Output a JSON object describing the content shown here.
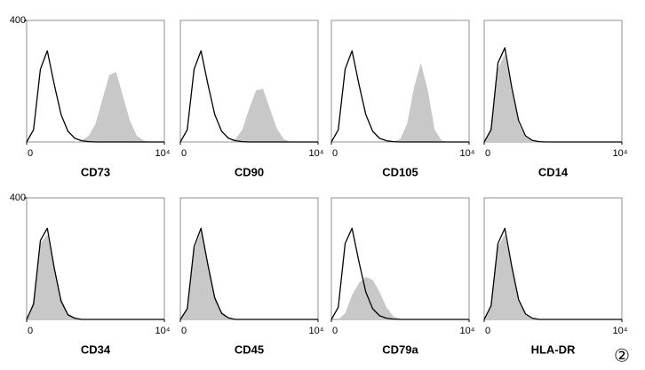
{
  "chart_data": [
    {
      "type": "area",
      "title": "CD73",
      "x": [
        0,
        0.2,
        0.4,
        0.6,
        0.8,
        1,
        1.2,
        1.4,
        1.6,
        1.8,
        2,
        2.2,
        2.4,
        2.6,
        2.8,
        3,
        3.2,
        3.4,
        3.6,
        3.8,
        4
      ],
      "xlim": [
        0,
        4
      ],
      "xticks": [
        0,
        {
          "value": 4,
          "label": "10⁴"
        }
      ],
      "ylim": [
        0,
        400
      ],
      "yticks": [
        400
      ],
      "series": [
        {
          "color": "#c8c8c8",
          "fill": true,
          "values": [
            0,
            0,
            0,
            0,
            0,
            0,
            0,
            0,
            5,
            20,
            60,
            140,
            220,
            230,
            150,
            70,
            20,
            5,
            0,
            0,
            0
          ]
        },
        {
          "color": "#000000",
          "fill": false,
          "values": [
            0,
            40,
            240,
            300,
            190,
            90,
            35,
            12,
            4,
            1,
            0,
            0,
            0,
            0,
            0,
            0,
            0,
            0,
            0,
            0,
            0
          ]
        }
      ]
    },
    {
      "type": "area",
      "title": "CD90",
      "x": [
        0,
        0.2,
        0.4,
        0.6,
        0.8,
        1,
        1.2,
        1.4,
        1.6,
        1.8,
        2,
        2.2,
        2.4,
        2.6,
        2.8,
        3,
        3.2,
        3.4,
        3.6,
        3.8,
        4
      ],
      "xlim": [
        0,
        4
      ],
      "xticks": [
        0,
        {
          "value": 4,
          "label": "10⁴"
        }
      ],
      "ylim": [
        0,
        400
      ],
      "yticks": [],
      "series": [
        {
          "color": "#c8c8c8",
          "fill": true,
          "values": [
            0,
            0,
            0,
            0,
            0,
            0,
            0,
            0,
            10,
            40,
            110,
            170,
            175,
            110,
            45,
            10,
            0,
            0,
            0,
            0,
            0
          ]
        },
        {
          "color": "#000000",
          "fill": false,
          "values": [
            0,
            40,
            240,
            300,
            190,
            90,
            35,
            12,
            4,
            1,
            0,
            0,
            0,
            0,
            0,
            0,
            0,
            0,
            0,
            0,
            0
          ]
        }
      ]
    },
    {
      "type": "area",
      "title": "CD105",
      "x": [
        0,
        0.2,
        0.4,
        0.6,
        0.8,
        1,
        1.2,
        1.4,
        1.6,
        1.8,
        2,
        2.2,
        2.4,
        2.6,
        2.8,
        3,
        3.2,
        3.4,
        3.6,
        3.8,
        4
      ],
      "xlim": [
        0,
        4
      ],
      "xticks": [
        0,
        {
          "value": 4,
          "label": "10⁴"
        }
      ],
      "ylim": [
        0,
        400
      ],
      "yticks": [],
      "series": [
        {
          "color": "#c8c8c8",
          "fill": true,
          "values": [
            0,
            0,
            0,
            0,
            0,
            0,
            0,
            0,
            0,
            0,
            10,
            60,
            180,
            260,
            170,
            40,
            5,
            0,
            0,
            0,
            0
          ]
        },
        {
          "color": "#000000",
          "fill": false,
          "values": [
            0,
            40,
            240,
            300,
            190,
            90,
            35,
            12,
            4,
            1,
            0,
            0,
            0,
            0,
            0,
            0,
            0,
            0,
            0,
            0,
            0
          ]
        }
      ]
    },
    {
      "type": "area",
      "title": "CD14",
      "x": [
        0,
        0.2,
        0.4,
        0.6,
        0.8,
        1,
        1.2,
        1.4,
        1.6,
        1.8,
        2,
        2.2,
        2.4,
        2.6,
        2.8,
        3,
        3.2,
        3.4,
        3.6,
        3.8,
        4
      ],
      "xlim": [
        0,
        4
      ],
      "xticks": [
        0,
        {
          "value": 4,
          "label": "10⁴"
        }
      ],
      "ylim": [
        0,
        400
      ],
      "yticks": [],
      "series": [
        {
          "color": "#c8c8c8",
          "fill": true,
          "values": [
            0,
            50,
            240,
            290,
            170,
            60,
            15,
            3,
            0,
            0,
            0,
            0,
            0,
            0,
            0,
            0,
            0,
            0,
            0,
            0,
            0
          ]
        },
        {
          "color": "#000000",
          "fill": false,
          "values": [
            0,
            40,
            260,
            310,
            180,
            70,
            20,
            5,
            1,
            0,
            0,
            0,
            0,
            0,
            0,
            0,
            0,
            0,
            0,
            0,
            0
          ]
        }
      ]
    },
    {
      "type": "area",
      "title": "CD34",
      "x": [
        0,
        0.2,
        0.4,
        0.6,
        0.8,
        1,
        1.2,
        1.4,
        1.6,
        1.8,
        2,
        2.2,
        2.4,
        2.6,
        2.8,
        3,
        3.2,
        3.4,
        3.6,
        3.8,
        4
      ],
      "xlim": [
        0,
        4
      ],
      "xticks": [
        0,
        {
          "value": 4,
          "label": "10⁴"
        }
      ],
      "ylim": [
        0,
        400
      ],
      "yticks": [
        400
      ],
      "series": [
        {
          "color": "#c8c8c8",
          "fill": true,
          "values": [
            0,
            60,
            250,
            280,
            180,
            70,
            20,
            5,
            1,
            0,
            0,
            0,
            0,
            0,
            0,
            0,
            0,
            0,
            0,
            0,
            0
          ]
        },
        {
          "color": "#000000",
          "fill": false,
          "values": [
            0,
            50,
            260,
            300,
            170,
            60,
            15,
            4,
            0,
            0,
            0,
            0,
            0,
            0,
            0,
            0,
            0,
            0,
            0,
            0,
            0
          ]
        }
      ]
    },
    {
      "type": "area",
      "title": "CD45",
      "x": [
        0,
        0.2,
        0.4,
        0.6,
        0.8,
        1,
        1.2,
        1.4,
        1.6,
        1.8,
        2,
        2.2,
        2.4,
        2.6,
        2.8,
        3,
        3.2,
        3.4,
        3.6,
        3.8,
        4
      ],
      "xlim": [
        0,
        4
      ],
      "xticks": [
        0,
        {
          "value": 4,
          "label": "10⁴"
        }
      ],
      "ylim": [
        0,
        400
      ],
      "yticks": [],
      "series": [
        {
          "color": "#c8c8c8",
          "fill": true,
          "values": [
            0,
            40,
            230,
            290,
            190,
            80,
            25,
            6,
            1,
            0,
            0,
            0,
            0,
            0,
            0,
            0,
            0,
            0,
            0,
            0,
            0
          ]
        },
        {
          "color": "#000000",
          "fill": false,
          "values": [
            0,
            35,
            240,
            300,
            180,
            70,
            20,
            5,
            0,
            0,
            0,
            0,
            0,
            0,
            0,
            0,
            0,
            0,
            0,
            0,
            0
          ]
        }
      ]
    },
    {
      "type": "area",
      "title": "CD79a",
      "x": [
        0,
        0.2,
        0.4,
        0.6,
        0.8,
        1,
        1.2,
        1.4,
        1.6,
        1.8,
        2,
        2.2,
        2.4,
        2.6,
        2.8,
        3,
        3.2,
        3.4,
        3.6,
        3.8,
        4
      ],
      "xlim": [
        0,
        4
      ],
      "xticks": [
        0,
        {
          "value": 4,
          "label": "10⁴"
        }
      ],
      "ylim": [
        0,
        400
      ],
      "yticks": [],
      "series": [
        {
          "color": "#c8c8c8",
          "fill": true,
          "values": [
            0,
            0,
            20,
            80,
            120,
            140,
            130,
            90,
            40,
            10,
            2,
            0,
            0,
            0,
            0,
            0,
            0,
            0,
            0,
            0,
            0
          ]
        },
        {
          "color": "#000000",
          "fill": false,
          "values": [
            0,
            40,
            250,
            300,
            190,
            90,
            35,
            12,
            4,
            1,
            0,
            0,
            0,
            0,
            0,
            0,
            0,
            0,
            0,
            0,
            0
          ]
        }
      ]
    },
    {
      "type": "area",
      "title": "HLA-DR",
      "x": [
        0,
        0.2,
        0.4,
        0.6,
        0.8,
        1,
        1.2,
        1.4,
        1.6,
        1.8,
        2,
        2.2,
        2.4,
        2.6,
        2.8,
        3,
        3.2,
        3.4,
        3.6,
        3.8,
        4
      ],
      "xlim": [
        0,
        4
      ],
      "xticks": [
        0,
        {
          "value": 4,
          "label": "10⁴"
        }
      ],
      "ylim": [
        0,
        400
      ],
      "yticks": [],
      "series": [
        {
          "color": "#c8c8c8",
          "fill": true,
          "values": [
            0,
            50,
            240,
            280,
            170,
            60,
            15,
            3,
            0,
            0,
            0,
            0,
            0,
            0,
            0,
            0,
            0,
            0,
            0,
            0,
            0
          ]
        },
        {
          "color": "#000000",
          "fill": false,
          "values": [
            0,
            45,
            250,
            300,
            175,
            65,
            18,
            4,
            0,
            0,
            0,
            0,
            0,
            0,
            0,
            0,
            0,
            0,
            0,
            0,
            0
          ]
        }
      ]
    }
  ],
  "figure_label": "②"
}
